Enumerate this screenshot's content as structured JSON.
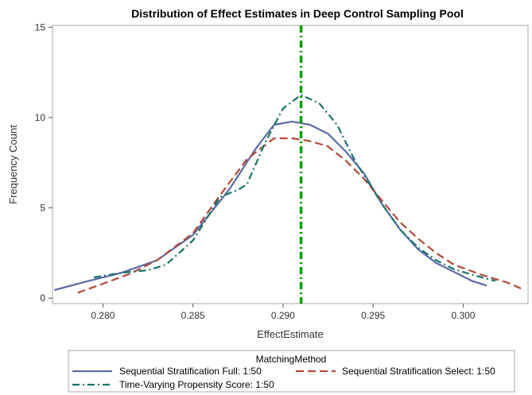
{
  "chart_data": {
    "type": "line",
    "title": "Distribution of Effect Estimates in Deep Control Sampling Pool",
    "xlabel": "EffectEstimate",
    "ylabel": "Frequency Count",
    "xlim": [
      0.2772,
      0.3036
    ],
    "ylim": [
      -0.3,
      15.1
    ],
    "x_ticks": [
      0.28,
      0.285,
      0.29,
      0.295,
      0.3
    ],
    "x_tick_labels": [
      "0.280",
      "0.285",
      "0.290",
      "0.295",
      "0.300"
    ],
    "y_ticks": [
      0,
      5,
      10,
      15
    ],
    "y_tick_labels": [
      "0",
      "5",
      "10",
      "15"
    ],
    "reference_line": {
      "x": 0.291,
      "color": "#00a000",
      "style": "dash-dot"
    },
    "legend": {
      "title": "MatchingMethod",
      "position": "bottom"
    },
    "series": [
      {
        "name": "Sequential Stratification Full: 1:50",
        "color": "#5b6aa8",
        "style": "solid",
        "points": [
          [
            0.2773,
            0.45
          ],
          [
            0.279,
            0.9
          ],
          [
            0.281,
            1.4
          ],
          [
            0.283,
            2.1
          ],
          [
            0.285,
            3.5
          ],
          [
            0.287,
            6.0
          ],
          [
            0.2885,
            8.3
          ],
          [
            0.2895,
            9.6
          ],
          [
            0.2905,
            9.78
          ],
          [
            0.2915,
            9.6
          ],
          [
            0.2925,
            9.1
          ],
          [
            0.2935,
            8.1
          ],
          [
            0.2945,
            6.9
          ],
          [
            0.2955,
            5.2
          ],
          [
            0.2965,
            3.8
          ],
          [
            0.2975,
            2.7
          ],
          [
            0.2985,
            1.95
          ],
          [
            0.2995,
            1.45
          ],
          [
            0.3005,
            0.95
          ],
          [
            0.3013,
            0.7
          ]
        ]
      },
      {
        "name": "Sequential Stratification Select: 1:50",
        "color": "#b24a3b",
        "style": "dashed",
        "points": [
          [
            0.2786,
            0.3
          ],
          [
            0.28,
            0.8
          ],
          [
            0.2815,
            1.35
          ],
          [
            0.283,
            2.1
          ],
          [
            0.285,
            3.6
          ],
          [
            0.2865,
            5.7
          ],
          [
            0.288,
            7.7
          ],
          [
            0.2895,
            8.85
          ],
          [
            0.2905,
            8.85
          ],
          [
            0.2915,
            8.7
          ],
          [
            0.2925,
            8.4
          ],
          [
            0.2935,
            7.6
          ],
          [
            0.2945,
            6.6
          ],
          [
            0.2955,
            5.4
          ],
          [
            0.2965,
            4.2
          ],
          [
            0.2975,
            3.3
          ],
          [
            0.2985,
            2.5
          ],
          [
            0.2995,
            1.85
          ],
          [
            0.301,
            1.3
          ],
          [
            0.3025,
            0.85
          ],
          [
            0.3034,
            0.45
          ]
        ]
      },
      {
        "name": "Time-Varying Propensity Score: 1:50",
        "color": "#1a7468",
        "style": "dash-dot",
        "points": [
          [
            0.2795,
            1.15
          ],
          [
            0.281,
            1.4
          ],
          [
            0.2825,
            1.55
          ],
          [
            0.2835,
            1.85
          ],
          [
            0.285,
            3.2
          ],
          [
            0.2865,
            5.6
          ],
          [
            0.2875,
            6.0
          ],
          [
            0.288,
            6.3
          ],
          [
            0.289,
            8.6
          ],
          [
            0.29,
            10.5
          ],
          [
            0.291,
            11.25
          ],
          [
            0.292,
            10.8
          ],
          [
            0.293,
            9.6
          ],
          [
            0.294,
            7.6
          ],
          [
            0.2955,
            5.2
          ],
          [
            0.2965,
            3.8
          ],
          [
            0.2975,
            2.8
          ],
          [
            0.2985,
            2.1
          ],
          [
            0.2995,
            1.6
          ],
          [
            0.3005,
            1.3
          ],
          [
            0.3018,
            0.95
          ]
        ]
      }
    ]
  }
}
